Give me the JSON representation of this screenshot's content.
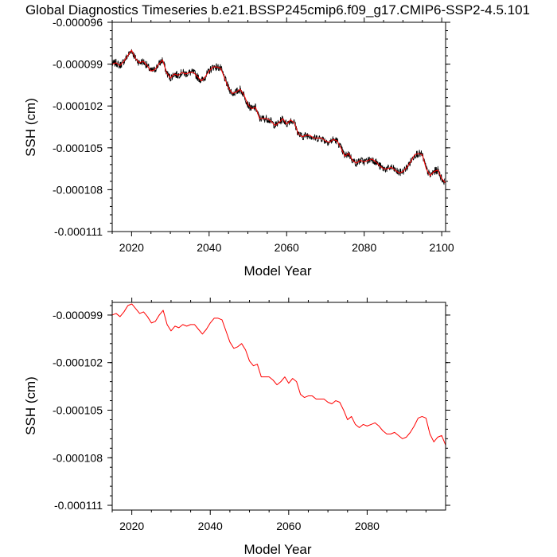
{
  "figure_title": "Global Diagnostics Timeseries b.e21.BSSP245cmip6.f09_g17.CMIP6-SSP2-4.5.101",
  "colors": {
    "annual": "#ff0000",
    "monthly": "#000000",
    "axes": "#000000"
  },
  "chart_data": [
    {
      "type": "line",
      "xlabel": "Model Year",
      "ylabel": "SSH (cm)",
      "xlim": [
        2015,
        2101
      ],
      "ylim": [
        -0.000111,
        -9.6e-05
      ],
      "xticks": [
        2020,
        2040,
        2060,
        2080,
        2100
      ],
      "xtick_labels": [
        "2020",
        "2040",
        "2060",
        "2080",
        "2100"
      ],
      "yticks": [
        -9.6e-05,
        -9.9e-05,
        -0.000102,
        -0.000105,
        -0.000108,
        -0.000111
      ],
      "ytick_labels": [
        "-0.000096",
        "-0.000099",
        "-0.000102",
        "-0.000105",
        "-0.000108",
        "-0.000111"
      ],
      "series": [
        {
          "name": "monthly",
          "color": "#000000",
          "noisy": true,
          "x_start": 2015,
          "x_end": 2100.9,
          "x": [
            2015,
            2016,
            2017,
            2018,
            2019,
            2020,
            2021,
            2022,
            2023,
            2024,
            2025,
            2026,
            2027,
            2028,
            2029,
            2030,
            2031,
            2032,
            2033,
            2034,
            2035,
            2036,
            2037,
            2038,
            2039,
            2040,
            2041,
            2042,
            2043,
            2044,
            2045,
            2046,
            2047,
            2048,
            2049,
            2050,
            2051,
            2052,
            2053,
            2054,
            2055,
            2056,
            2057,
            2058,
            2059,
            2060,
            2061,
            2062,
            2063,
            2064,
            2065,
            2066,
            2067,
            2068,
            2069,
            2070,
            2071,
            2072,
            2073,
            2074,
            2075,
            2076,
            2077,
            2078,
            2079,
            2080,
            2081,
            2082,
            2083,
            2084,
            2085,
            2086,
            2087,
            2088,
            2089,
            2090,
            2091,
            2092,
            2093,
            2094,
            2095,
            2096,
            2097,
            2098,
            2099,
            2100,
            2100.9
          ],
          "values": [
            -9.9e-05,
            -9.89e-05,
            -9.91e-05,
            -9.88e-05,
            -9.84e-05,
            -9.8e-05,
            -9.86e-05,
            -9.89e-05,
            -9.88e-05,
            -9.91e-05,
            -9.95e-05,
            -9.94e-05,
            -9.9e-05,
            -9.87e-05,
            -9.96e-05,
            -0.0001,
            -9.97e-05,
            -9.98e-05,
            -9.96e-05,
            -9.97e-05,
            -9.96e-05,
            -9.96e-05,
            -9.99e-05,
            -0.0001002,
            -9.99e-05,
            -9.95e-05,
            -9.92e-05,
            -9.92e-05,
            -9.93e-05,
            -0.0001,
            -0.0001007,
            -0.0001011,
            -0.000101,
            -0.0001008,
            -0.0001012,
            -0.0001019,
            -0.0001022,
            -0.0001021,
            -0.0001029,
            -0.0001029,
            -0.0001029,
            -0.0001031,
            -0.0001034,
            -0.0001032,
            -0.0001029,
            -0.0001033,
            -0.000103,
            -0.0001032,
            -0.000104,
            -0.0001042,
            -0.0001041,
            -0.0001041,
            -0.0001043,
            -0.0001043,
            -0.0001043,
            -0.0001045,
            -0.0001046,
            -0.0001044,
            -0.0001045,
            -0.000105,
            -0.0001056,
            -0.0001054,
            -0.0001059,
            -0.0001061,
            -0.0001059,
            -0.000106,
            -0.0001059,
            -0.0001058,
            -0.000106,
            -0.0001063,
            -0.0001065,
            -0.0001065,
            -0.0001064,
            -0.0001066,
            -0.0001068,
            -0.0001067,
            -0.0001064,
            -0.000106,
            -0.0001055,
            -0.0001054,
            -0.0001055,
            -0.0001065,
            -0.000107,
            -0.0001067,
            -0.0001066,
            -0.0001072,
            -0.0001075
          ]
        },
        {
          "name": "annual",
          "color": "#ff0000",
          "noisy": false,
          "x_start": 2015,
          "x_end": 2100.9,
          "x": [
            2015,
            2016,
            2017,
            2018,
            2019,
            2020,
            2021,
            2022,
            2023,
            2024,
            2025,
            2026,
            2027,
            2028,
            2029,
            2030,
            2031,
            2032,
            2033,
            2034,
            2035,
            2036,
            2037,
            2038,
            2039,
            2040,
            2041,
            2042,
            2043,
            2044,
            2045,
            2046,
            2047,
            2048,
            2049,
            2050,
            2051,
            2052,
            2053,
            2054,
            2055,
            2056,
            2057,
            2058,
            2059,
            2060,
            2061,
            2062,
            2063,
            2064,
            2065,
            2066,
            2067,
            2068,
            2069,
            2070,
            2071,
            2072,
            2073,
            2074,
            2075,
            2076,
            2077,
            2078,
            2079,
            2080,
            2081,
            2082,
            2083,
            2084,
            2085,
            2086,
            2087,
            2088,
            2089,
            2090,
            2091,
            2092,
            2093,
            2094,
            2095,
            2096,
            2097,
            2098,
            2099,
            2100,
            2100.9
          ],
          "values": [
            -9.9e-05,
            -9.89e-05,
            -9.91e-05,
            -9.88e-05,
            -9.84e-05,
            -9.8e-05,
            -9.86e-05,
            -9.89e-05,
            -9.88e-05,
            -9.91e-05,
            -9.95e-05,
            -9.94e-05,
            -9.9e-05,
            -9.87e-05,
            -9.96e-05,
            -0.0001,
            -9.97e-05,
            -9.98e-05,
            -9.96e-05,
            -9.97e-05,
            -9.96e-05,
            -9.96e-05,
            -9.99e-05,
            -0.0001002,
            -9.99e-05,
            -9.95e-05,
            -9.92e-05,
            -9.92e-05,
            -9.93e-05,
            -0.0001,
            -0.0001007,
            -0.0001011,
            -0.000101,
            -0.0001008,
            -0.0001012,
            -0.0001019,
            -0.0001022,
            -0.0001021,
            -0.0001029,
            -0.0001029,
            -0.0001029,
            -0.0001031,
            -0.0001034,
            -0.0001032,
            -0.0001029,
            -0.0001033,
            -0.000103,
            -0.0001032,
            -0.000104,
            -0.0001042,
            -0.0001041,
            -0.0001041,
            -0.0001043,
            -0.0001043,
            -0.0001043,
            -0.0001045,
            -0.0001046,
            -0.0001044,
            -0.0001045,
            -0.000105,
            -0.0001056,
            -0.0001054,
            -0.0001059,
            -0.0001061,
            -0.0001059,
            -0.000106,
            -0.0001059,
            -0.0001058,
            -0.000106,
            -0.0001063,
            -0.0001065,
            -0.0001065,
            -0.0001064,
            -0.0001066,
            -0.0001068,
            -0.0001067,
            -0.0001064,
            -0.000106,
            -0.0001055,
            -0.0001054,
            -0.0001055,
            -0.0001065,
            -0.000107,
            -0.0001067,
            -0.0001066,
            -0.0001072,
            -0.0001075
          ]
        }
      ]
    },
    {
      "type": "line",
      "xlabel": "Model Year",
      "ylabel": "SSH (cm)",
      "xlim": [
        2015,
        2100
      ],
      "ylim": [
        -0.0001113,
        -9.82e-05
      ],
      "xticks": [
        2020,
        2040,
        2060,
        2080
      ],
      "xtick_labels": [
        "2020",
        "2040",
        "2060",
        "2080"
      ],
      "yticks": [
        -9.9e-05,
        -0.000102,
        -0.000105,
        -0.000108,
        -0.000111
      ],
      "ytick_labels": [
        "-0.000099",
        "-0.000102",
        "-0.000105",
        "-0.000108",
        "-0.000111"
      ],
      "series": [
        {
          "name": "annual",
          "color": "#ff0000",
          "noisy": false,
          "x": [
            2015,
            2016,
            2017,
            2018,
            2019,
            2020,
            2021,
            2022,
            2023,
            2024,
            2025,
            2026,
            2027,
            2028,
            2029,
            2030,
            2031,
            2032,
            2033,
            2034,
            2035,
            2036,
            2037,
            2038,
            2039,
            2040,
            2041,
            2042,
            2043,
            2044,
            2045,
            2046,
            2047,
            2048,
            2049,
            2050,
            2051,
            2052,
            2053,
            2054,
            2055,
            2056,
            2057,
            2058,
            2059,
            2060,
            2061,
            2062,
            2063,
            2064,
            2065,
            2066,
            2067,
            2068,
            2069,
            2070,
            2071,
            2072,
            2073,
            2074,
            2075,
            2076,
            2077,
            2078,
            2079,
            2080,
            2081,
            2082,
            2083,
            2084,
            2085,
            2086,
            2087,
            2088,
            2089,
            2090,
            2091,
            2092,
            2093,
            2094,
            2095,
            2096,
            2097,
            2098,
            2099,
            2100
          ],
          "values": [
            -9.9e-05,
            -9.89e-05,
            -9.91e-05,
            -9.88e-05,
            -9.84e-05,
            -9.83e-05,
            -9.86e-05,
            -9.89e-05,
            -9.88e-05,
            -9.91e-05,
            -9.95e-05,
            -9.94e-05,
            -9.9e-05,
            -9.87e-05,
            -9.96e-05,
            -0.0001,
            -9.97e-05,
            -9.98e-05,
            -9.96e-05,
            -9.97e-05,
            -9.96e-05,
            -9.96e-05,
            -9.99e-05,
            -0.0001002,
            -9.99e-05,
            -9.95e-05,
            -9.92e-05,
            -9.92e-05,
            -9.93e-05,
            -0.0001,
            -0.0001007,
            -0.0001011,
            -0.000101,
            -0.0001008,
            -0.0001012,
            -0.0001019,
            -0.0001022,
            -0.0001021,
            -0.0001029,
            -0.0001029,
            -0.0001029,
            -0.0001031,
            -0.0001034,
            -0.0001032,
            -0.0001029,
            -0.0001033,
            -0.000103,
            -0.0001032,
            -0.000104,
            -0.0001042,
            -0.0001041,
            -0.0001041,
            -0.0001043,
            -0.0001043,
            -0.0001043,
            -0.0001045,
            -0.0001046,
            -0.0001044,
            -0.0001045,
            -0.000105,
            -0.0001056,
            -0.0001054,
            -0.0001059,
            -0.0001061,
            -0.0001059,
            -0.000106,
            -0.0001059,
            -0.0001058,
            -0.000106,
            -0.0001063,
            -0.0001065,
            -0.0001065,
            -0.0001064,
            -0.0001066,
            -0.0001068,
            -0.0001067,
            -0.0001064,
            -0.000106,
            -0.0001055,
            -0.0001054,
            -0.0001055,
            -0.0001065,
            -0.000107,
            -0.0001067,
            -0.0001066,
            -0.0001072
          ]
        }
      ]
    }
  ]
}
